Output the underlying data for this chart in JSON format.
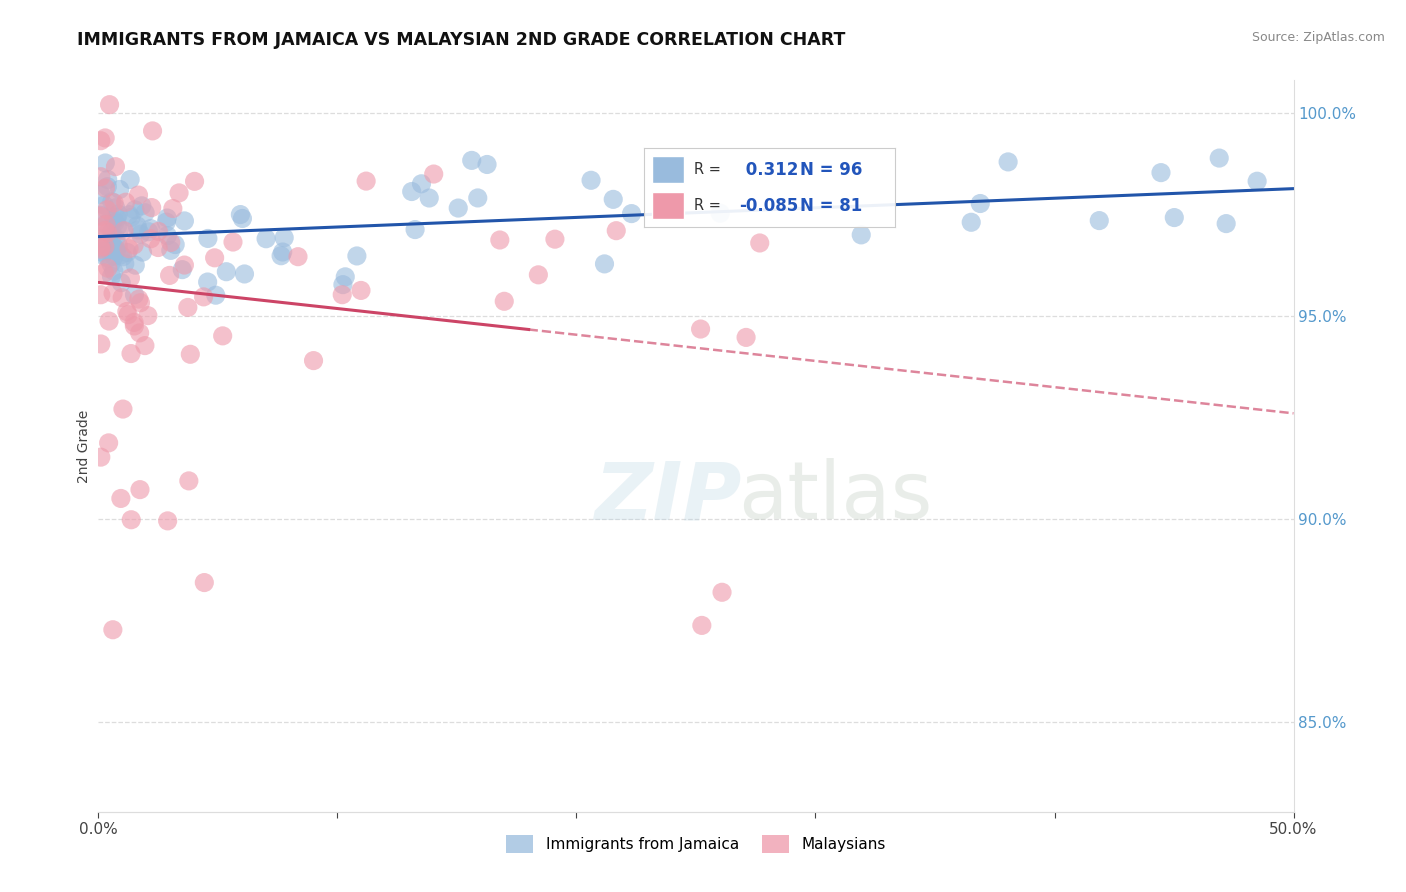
{
  "title": "IMMIGRANTS FROM JAMAICA VS MALAYSIAN 2ND GRADE CORRELATION CHART",
  "source": "Source: ZipAtlas.com",
  "ylabel": "2nd Grade",
  "xlim": [
    0.0,
    0.5
  ],
  "ylim": [
    0.828,
    1.008
  ],
  "yticks": [
    0.85,
    0.9,
    0.95,
    1.0
  ],
  "yticklabels": [
    "85.0%",
    "90.0%",
    "95.0%",
    "100.0%"
  ],
  "xticks": [
    0.0,
    0.1,
    0.2,
    0.3,
    0.4,
    0.5
  ],
  "xticklabels": [
    "0.0%",
    "",
    "",
    "",
    "",
    "50.0%"
  ],
  "blue_R": 0.312,
  "blue_N": 96,
  "pink_R": -0.085,
  "pink_N": 81,
  "blue_color": "#99BBDD",
  "pink_color": "#EE99AA",
  "blue_line_color": "#2255AA",
  "pink_line_color": "#CC4466",
  "legend_label_blue": "Immigrants from Jamaica",
  "legend_label_pink": "Malaysians",
  "grid_color": "#DDDDDD",
  "tick_color": "#5599CC",
  "title_color": "#111111",
  "source_color": "#888888"
}
